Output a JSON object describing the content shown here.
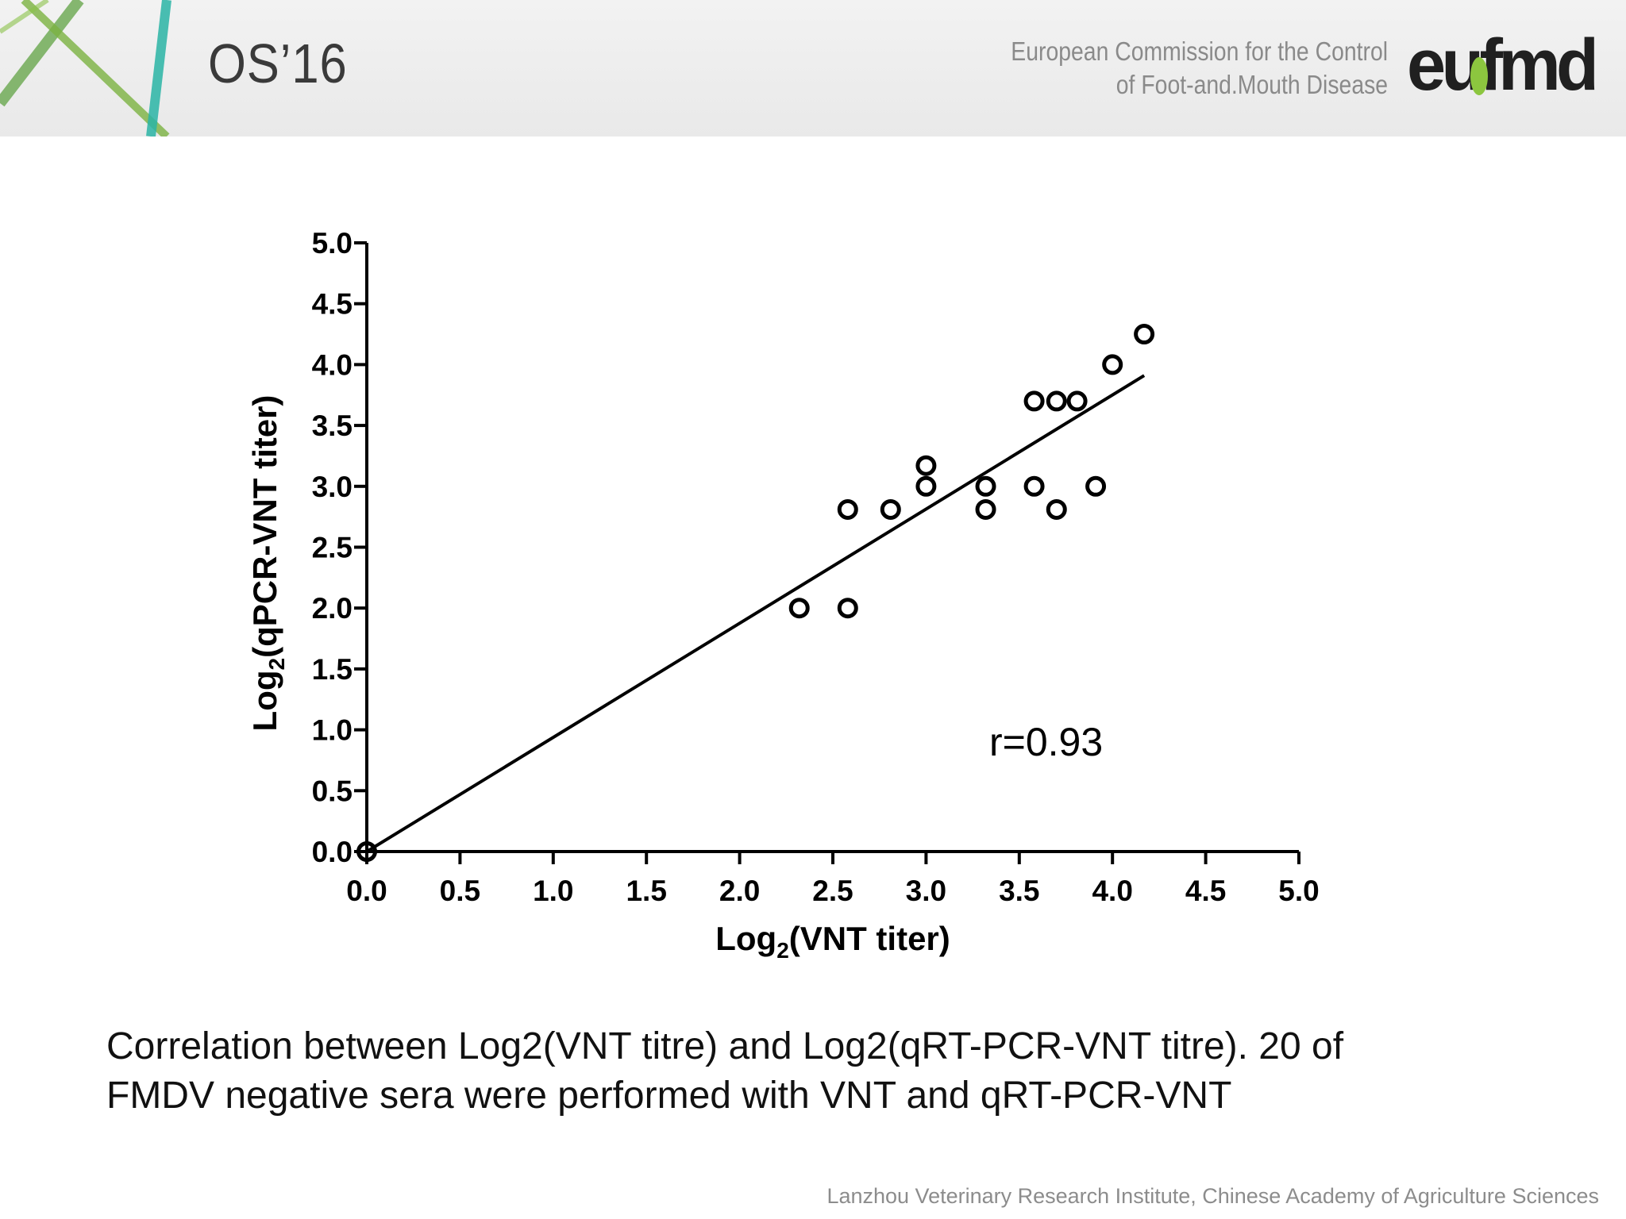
{
  "header": {
    "slide_code": "OS’16",
    "org_line_1": "European Commission for the Control",
    "org_line_2": "of Foot-and.Mouth Disease",
    "logo_text": "eufmd"
  },
  "chart_data": {
    "type": "scatter",
    "xlabel": "Log2(VNT titer)",
    "ylabel": "Log2(qPCR-VNT titer)",
    "xlim": [
      0,
      5
    ],
    "ylim": [
      0,
      5
    ],
    "xticks": [
      "0.0",
      "0.5",
      "1.0",
      "1.5",
      "2.0",
      "2.5",
      "3.0",
      "3.5",
      "4.0",
      "4.5",
      "5.0"
    ],
    "yticks": [
      "0.0",
      "0.5",
      "1.0",
      "1.5",
      "2.0",
      "2.5",
      "3.0",
      "3.5",
      "4.0",
      "4.5",
      "5.0"
    ],
    "points": [
      {
        "x": 0.0,
        "y": 0.0
      },
      {
        "x": 2.32,
        "y": 2.0
      },
      {
        "x": 2.58,
        "y": 2.0
      },
      {
        "x": 2.58,
        "y": 2.81
      },
      {
        "x": 2.81,
        "y": 2.81
      },
      {
        "x": 3.0,
        "y": 3.0
      },
      {
        "x": 3.0,
        "y": 3.17
      },
      {
        "x": 3.32,
        "y": 3.0
      },
      {
        "x": 3.32,
        "y": 2.81
      },
      {
        "x": 3.58,
        "y": 3.0
      },
      {
        "x": 3.7,
        "y": 2.81
      },
      {
        "x": 3.91,
        "y": 3.0
      },
      {
        "x": 3.58,
        "y": 3.7
      },
      {
        "x": 3.7,
        "y": 3.7
      },
      {
        "x": 3.81,
        "y": 3.7
      },
      {
        "x": 4.0,
        "y": 4.0
      },
      {
        "x": 4.17,
        "y": 4.25
      }
    ],
    "fit_line": {
      "x": [
        0.0,
        4.17
      ],
      "y": [
        0.0,
        3.91
      ]
    },
    "annotation": "r=0.93"
  },
  "caption": {
    "line_1": "Correlation between Log2(VNT titre) and Log2(qRT-PCR-VNT titre). 20 of",
    "line_2": "FMDV negative sera were performed with VNT and qRT-PCR-VNT"
  },
  "footer": {
    "credit": "Lanzhou Veterinary Research Institute, Chinese Academy of Agriculture Sciences"
  }
}
